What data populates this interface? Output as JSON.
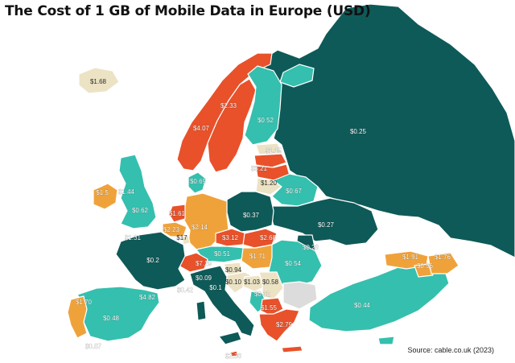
{
  "title": "The Cost of 1 GB of Mobile Data in Europe (USD)",
  "source": "Source: cable.co.uk (2023)",
  "colors": {
    "teal_dark": "#0e5a58",
    "teal_light": "#35bfae",
    "orange": "#f0a23a",
    "red_orange": "#e8512a",
    "beige": "#ece3c4",
    "grey": "#dcdcdc",
    "border": "#ffffff"
  },
  "price_labels": [
    {
      "id": "iceland",
      "text": "$1.68"
    },
    {
      "id": "norway",
      "text": "$4.07"
    },
    {
      "id": "sweden",
      "text": "$2.33"
    },
    {
      "id": "finland",
      "text": "$0.52"
    },
    {
      "id": "russia",
      "text": "$0.25"
    },
    {
      "id": "latvia",
      "text": "$1.15"
    },
    {
      "id": "lithuania",
      "text": "$3.21"
    },
    {
      "id": "belarus-west",
      "text": "$1.20"
    },
    {
      "id": "belarus",
      "text": "$0.67"
    },
    {
      "id": "denmark",
      "text": "$0.69"
    },
    {
      "id": "ireland",
      "text": "$1.5"
    },
    {
      "id": "scotland",
      "text": "$1.44"
    },
    {
      "id": "uk",
      "text": "$0.62"
    },
    {
      "id": "netherlands",
      "text": "$1.61"
    },
    {
      "id": "belgium",
      "text": "$2.23"
    },
    {
      "id": "luxembourg",
      "text": "$17"
    },
    {
      "id": "germany",
      "text": "$2.14"
    },
    {
      "id": "poland",
      "text": "$0.37"
    },
    {
      "id": "ukraine",
      "text": "$0.27"
    },
    {
      "id": "france",
      "text": "$0.2"
    },
    {
      "id": "channel",
      "text": "$1.31"
    },
    {
      "id": "czechia",
      "text": "$3.12"
    },
    {
      "id": "slovakia",
      "text": "$2.68"
    },
    {
      "id": "moldova",
      "text": "$0.28"
    },
    {
      "id": "austria",
      "text": "$0.51"
    },
    {
      "id": "hungary",
      "text": "$1.71"
    },
    {
      "id": "switzerland",
      "text": "$7.29"
    },
    {
      "id": "slovenia",
      "text": "$0.94"
    },
    {
      "id": "romania",
      "text": "$0.54"
    },
    {
      "id": "italy",
      "text": "$0.09"
    },
    {
      "id": "croatia",
      "text": "$0.10"
    },
    {
      "id": "bosnia",
      "text": "$1.03"
    },
    {
      "id": "serbia",
      "text": "$0.58"
    },
    {
      "id": "monaco",
      "text": "$0.42"
    },
    {
      "id": "sanmarino",
      "text": "$0.1"
    },
    {
      "id": "montenegro",
      "text": "$0.32"
    },
    {
      "id": "macedonia",
      "text": "$1.55"
    },
    {
      "id": "greece",
      "text": "$2.79"
    },
    {
      "id": "turkey",
      "text": "$0.44"
    },
    {
      "id": "georgia",
      "text": "$1.91"
    },
    {
      "id": "armenia",
      "text": "$0.96"
    },
    {
      "id": "azerbaijan",
      "text": "$1.76"
    },
    {
      "id": "portugal",
      "text": "$1.70"
    },
    {
      "id": "andorra",
      "text": "$4.82"
    },
    {
      "id": "spain",
      "text": "$0.48"
    },
    {
      "id": "gibraltar",
      "text": "$0.87"
    },
    {
      "id": "malta",
      "text": "$2.36"
    }
  ]
}
